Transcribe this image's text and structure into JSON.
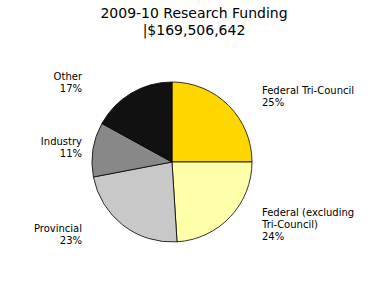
{
  "chart_data": {
    "type": "pie",
    "title": "2009-10 Research Funding\n|$169,506,642",
    "categories": [
      "Federal Tri-Council",
      "Federal (excluding\nTri-Council)",
      "Provincial",
      "Industry",
      "Other"
    ],
    "values": [
      25,
      24,
      23,
      11,
      17
    ],
    "value_labels": [
      "25%",
      "24%",
      "23%",
      "11%",
      "17%"
    ],
    "data_labels": true,
    "colors": [
      "#FFD700",
      "#FFFFAA",
      "#C8C8C8",
      "#888888",
      "#111111"
    ]
  }
}
